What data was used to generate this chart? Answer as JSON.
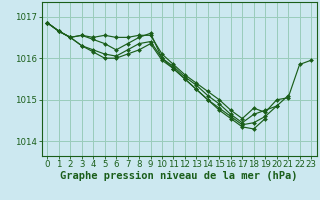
{
  "background_color": "#cce8f0",
  "grid_color": "#99ccbb",
  "line_color": "#1a5e1a",
  "marker_color": "#1a5e1a",
  "xlabel": "Graphe pression niveau de la mer (hPa)",
  "xlabel_fontsize": 7.5,
  "tick_fontsize": 6.2,
  "yticks": [
    1014,
    1015,
    1016,
    1017
  ],
  "xticks": [
    0,
    1,
    2,
    3,
    4,
    5,
    6,
    7,
    8,
    9,
    10,
    11,
    12,
    13,
    14,
    15,
    16,
    17,
    18,
    19,
    20,
    21,
    22,
    23
  ],
  "ylim": [
    1013.65,
    1017.35
  ],
  "xlim": [
    -0.5,
    23.5
  ],
  "series": [
    {
      "x": [
        0,
        1,
        2,
        3,
        4,
        5,
        6,
        7,
        8,
        9,
        10,
        11,
        12,
        13,
        14,
        15,
        16,
        17,
        18,
        19,
        20,
        21,
        22,
        23
      ],
      "y": [
        1016.85,
        1016.65,
        1016.5,
        1016.55,
        1016.5,
        1016.55,
        1016.5,
        1016.5,
        1016.55,
        1016.55,
        1016.1,
        1015.85,
        1015.6,
        1015.4,
        1015.2,
        1015.0,
        1014.75,
        1014.55,
        1014.8,
        1014.7,
        1015.0,
        1015.05,
        1015.85,
        1015.95
      ]
    },
    {
      "x": [
        0,
        1,
        2,
        3,
        4,
        5,
        6,
        7,
        8,
        9,
        10,
        11,
        12,
        13,
        14,
        15,
        16,
        17,
        18,
        19,
        20,
        21
      ],
      "y": [
        1016.85,
        1016.65,
        1016.5,
        1016.55,
        1016.45,
        1016.35,
        1016.2,
        1016.35,
        1016.5,
        1016.6,
        1016.0,
        1015.8,
        1015.55,
        1015.35,
        1015.1,
        1014.9,
        1014.65,
        1014.45,
        1014.65,
        1014.75,
        1014.85,
        1015.1
      ]
    },
    {
      "x": [
        0,
        1,
        2,
        3,
        4,
        5,
        6,
        7,
        8,
        9,
        10,
        11,
        12,
        13,
        14,
        15,
        16,
        17,
        18,
        19,
        20
      ],
      "y": [
        1016.85,
        1016.65,
        1016.5,
        1016.3,
        1016.2,
        1016.1,
        1016.05,
        1016.2,
        1016.35,
        1016.4,
        1016.0,
        1015.75,
        1015.5,
        1015.25,
        1015.0,
        1014.8,
        1014.6,
        1014.4,
        1014.45,
        1014.6,
        1014.85
      ]
    },
    {
      "x": [
        0,
        1,
        2,
        3,
        4,
        5,
        6,
        7,
        8,
        9,
        10,
        11,
        12,
        13,
        14,
        15,
        16,
        17,
        18,
        19
      ],
      "y": [
        1016.85,
        1016.65,
        1016.5,
        1016.3,
        1016.15,
        1016.0,
        1016.0,
        1016.1,
        1016.2,
        1016.35,
        1015.95,
        1015.75,
        1015.5,
        1015.25,
        1015.0,
        1014.75,
        1014.55,
        1014.35,
        1014.3,
        1014.55
      ]
    }
  ]
}
